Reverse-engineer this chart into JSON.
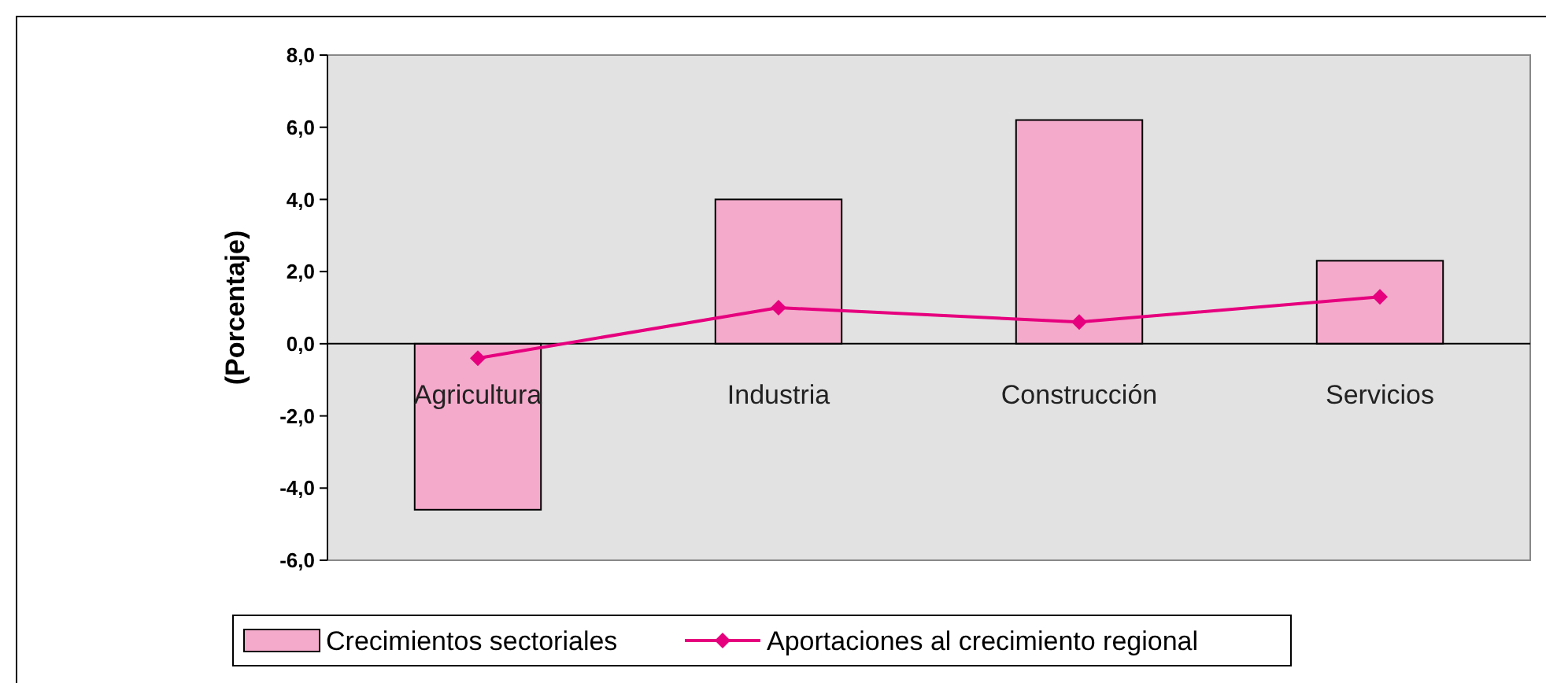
{
  "chart_data": {
    "type": "bar",
    "ylabel": "(Porcentaje)",
    "categories": [
      "Agricultura",
      "Industria",
      "Construcción",
      "Servicios"
    ],
    "series": [
      {
        "name": "Crecimientos sectoriales",
        "color": "#f4aacb",
        "values": [
          -4.6,
          4.0,
          6.2,
          2.3
        ]
      },
      {
        "name": "Aportaciones al crecimiento regional",
        "type": "line",
        "color": "#e6007e",
        "values": [
          -0.4,
          1.0,
          0.6,
          1.3
        ],
        "marker": "diamond"
      }
    ],
    "ylim": [
      -6,
      8
    ],
    "yticks": [
      {
        "value": -6,
        "label": "-6,0"
      },
      {
        "value": -4,
        "label": "-4,0"
      },
      {
        "value": -2,
        "label": "-2,0"
      },
      {
        "value": 0,
        "label": "0,0"
      },
      {
        "value": 2,
        "label": "2,0"
      },
      {
        "value": 4,
        "label": "4,0"
      },
      {
        "value": 6,
        "label": "6,0"
      },
      {
        "value": 8,
        "label": "8,0"
      }
    ],
    "grid": false,
    "legend": "bottom"
  }
}
